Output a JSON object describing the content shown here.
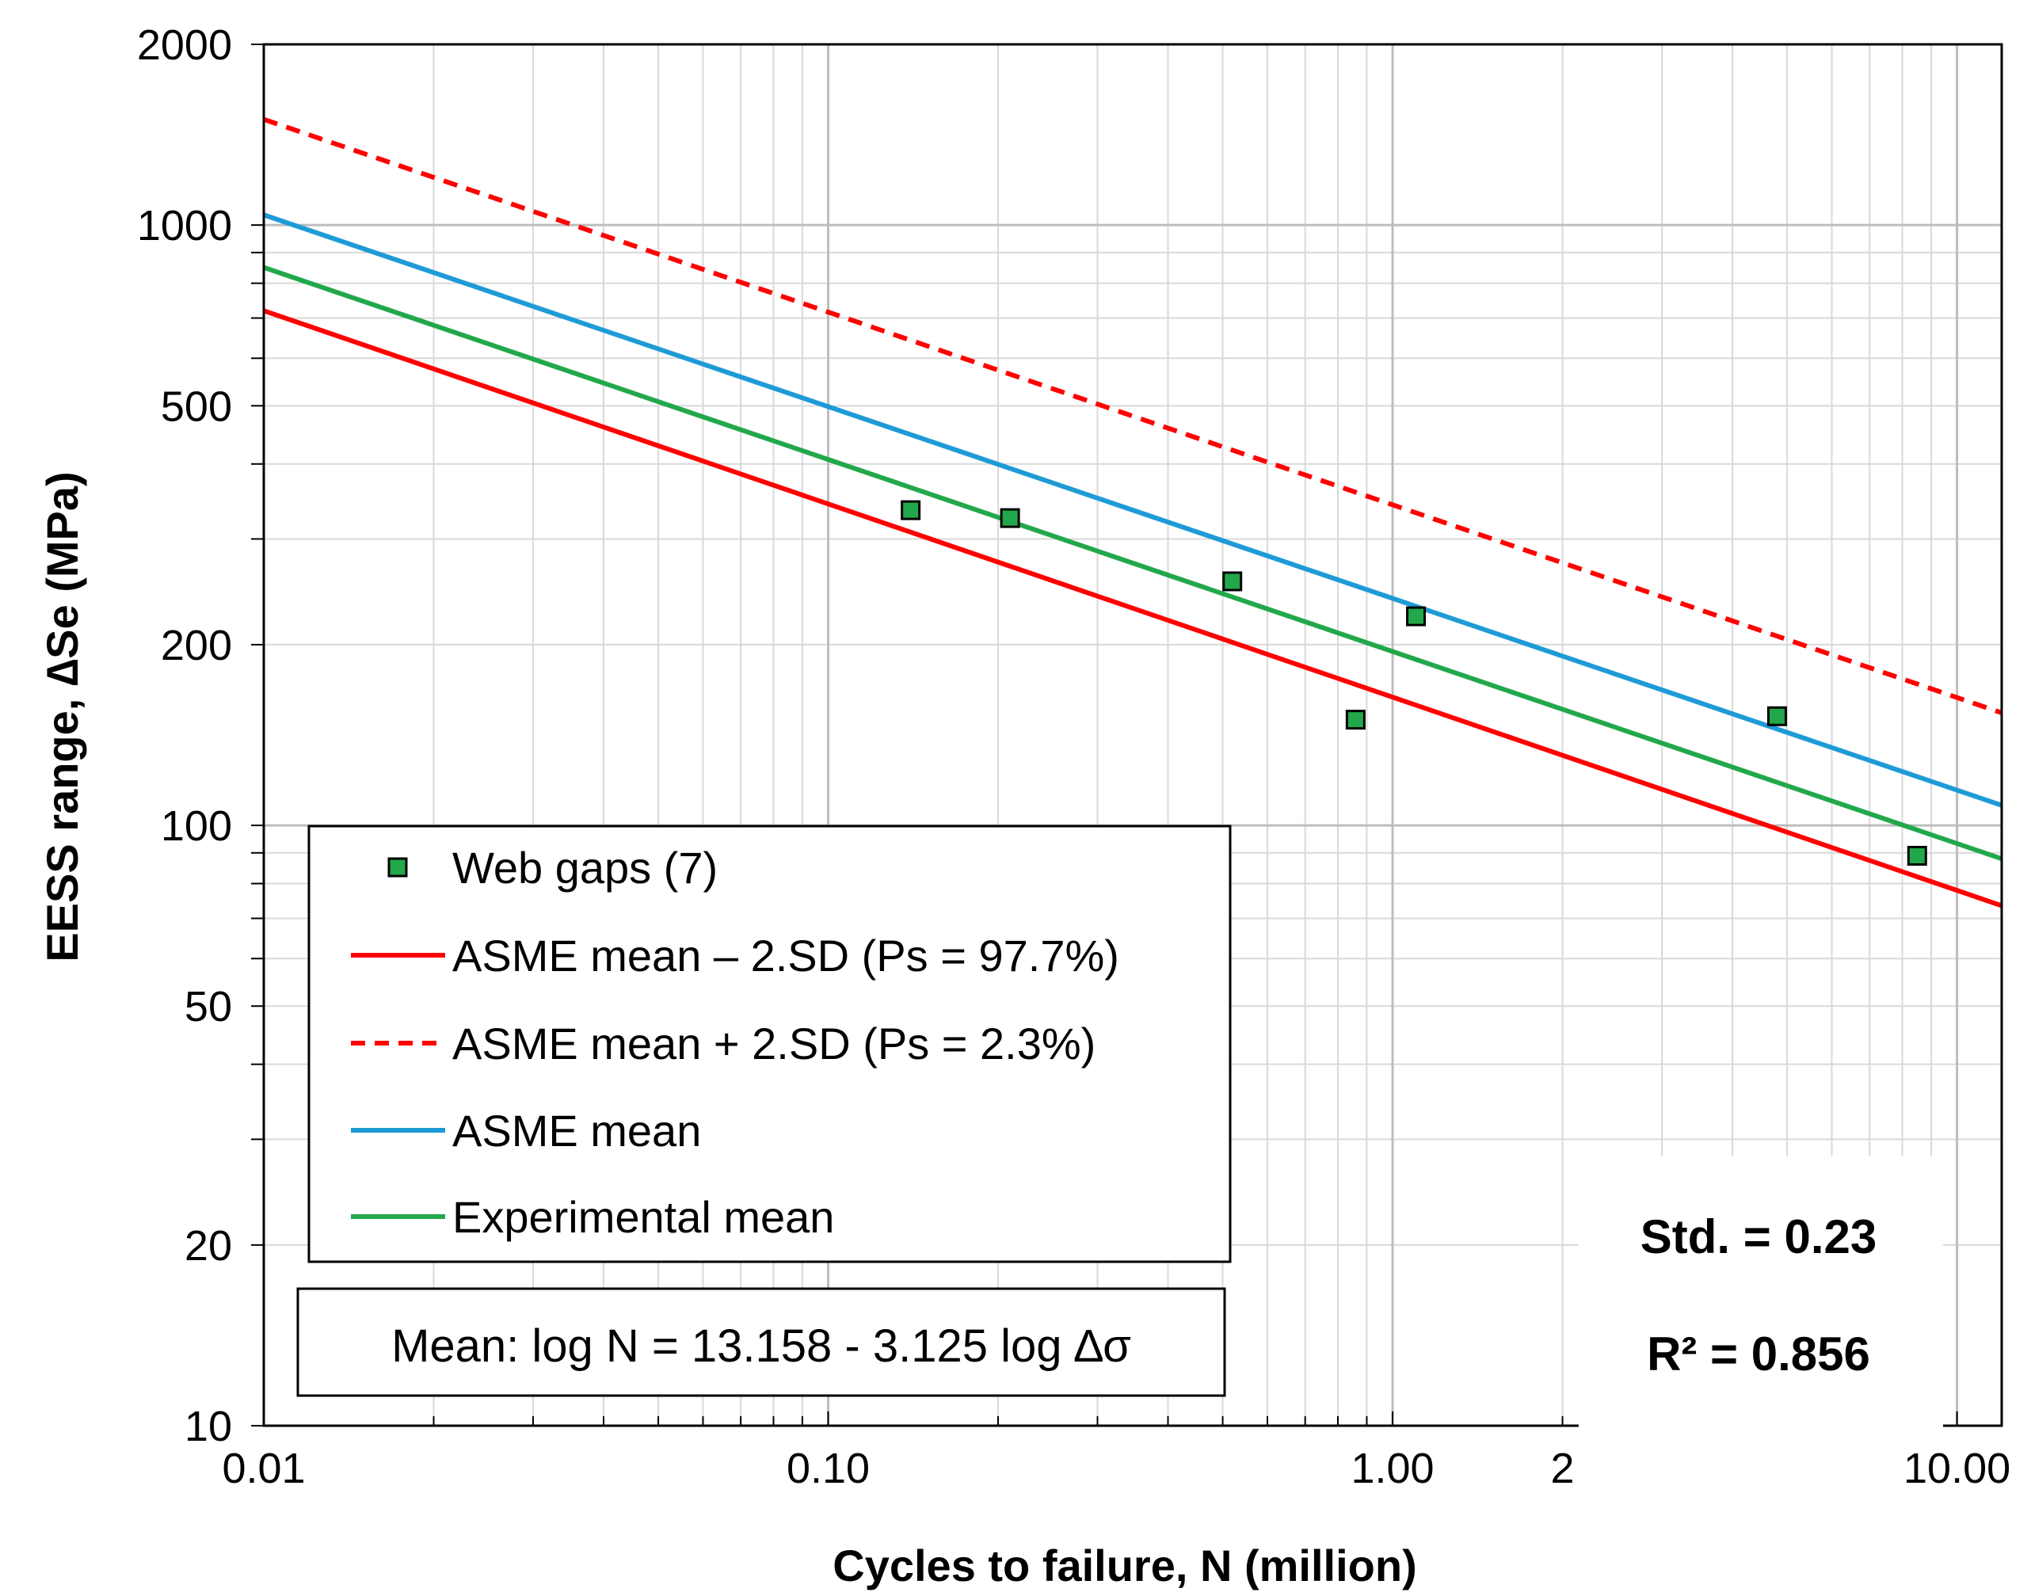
{
  "chart_data": {
    "type": "scatter",
    "xscale": "log",
    "yscale": "log",
    "xlim": [
      0.01,
      12.0
    ],
    "ylim": [
      10,
      2000
    ],
    "xlabel": "Cycles to failure, N (million)",
    "ylabel": "EESS range, ∆Se (MPa)",
    "x_tick_labels": [
      {
        "value": 0.01,
        "label": "0.01"
      },
      {
        "value": 0.1,
        "label": "0.10"
      },
      {
        "value": 1.0,
        "label": "1.00"
      },
      {
        "value": 2.0,
        "label": "2"
      },
      {
        "value": 10.0,
        "label": "10.00"
      }
    ],
    "y_tick_labels": [
      {
        "value": 2000,
        "label": "2000"
      },
      {
        "value": 1000,
        "label": "1000"
      },
      {
        "value": 500,
        "label": "500"
      },
      {
        "value": 200,
        "label": "200"
      },
      {
        "value": 100,
        "label": "100"
      },
      {
        "value": 50,
        "label": "50"
      },
      {
        "value": 20,
        "label": "20"
      },
      {
        "value": 10,
        "label": "10"
      }
    ],
    "grid": true,
    "legend_position": "bottom-left",
    "series": [
      {
        "name": "Web gaps (7)",
        "kind": "marker",
        "color": "#22A84A",
        "points": [
          [
            0.14,
            335
          ],
          [
            0.21,
            325
          ],
          [
            0.52,
            255
          ],
          [
            0.86,
            150
          ],
          [
            1.1,
            223
          ],
          [
            4.8,
            152
          ],
          [
            8.5,
            89
          ]
        ]
      },
      {
        "name": "ASME mean – 2.SD (Ps = 97.7%)",
        "kind": "line",
        "style": "solid",
        "color": "#FF0000",
        "points": [
          [
            0.01,
            720
          ],
          [
            12.0,
            73.5
          ]
        ]
      },
      {
        "name": "ASME mean + 2.SD (Ps = 2.3%)",
        "kind": "line",
        "style": "dashed",
        "color": "#FF0000",
        "points": [
          [
            0.01,
            1500
          ],
          [
            12.0,
            154
          ]
        ]
      },
      {
        "name": "ASME mean",
        "kind": "line",
        "style": "solid",
        "color": "#1E9BD7",
        "points": [
          [
            0.01,
            1040
          ],
          [
            12.0,
            108
          ]
        ]
      },
      {
        "name": "Experimental mean",
        "kind": "line",
        "style": "solid",
        "color": "#22A84A",
        "points": [
          [
            0.01,
            850
          ],
          [
            12.0,
            88
          ]
        ]
      }
    ],
    "annotations": {
      "equation": "Mean: log N = 13.158 - 3.125 log ∆σ",
      "std": "Std. = 0.23",
      "r2": "R² = 0.856"
    }
  }
}
